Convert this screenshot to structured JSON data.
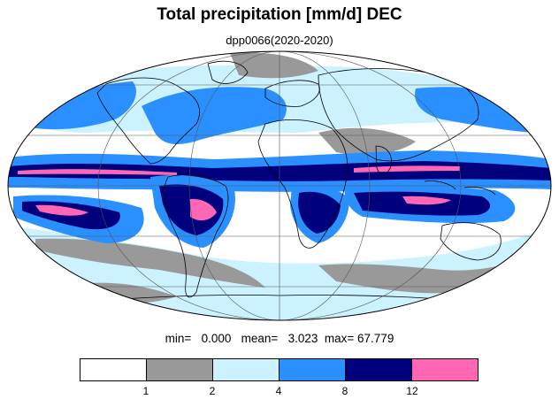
{
  "title": "Total precipitation [mm/d] DEC",
  "subtitle": "dpp0066(2020-2020)",
  "stats": {
    "min_label": "min=",
    "min_value": "0.000",
    "mean_label": "mean=",
    "mean_value": "3.023",
    "max_label": "max=",
    "max_value": "67.779"
  },
  "colorbar": {
    "labels": [
      "1",
      "2",
      "4",
      "8",
      "12"
    ],
    "colors": [
      "#ffffff",
      "#999999",
      "#ccf2ff",
      "#2b90ff",
      "#00007f",
      "#ff66b3"
    ]
  },
  "map": {
    "projection": "mollweide",
    "graticule_lat_step_deg": 30,
    "graticule_lon_step_deg": 60,
    "colors": {
      "background": "#ffffff",
      "outline": "#000000",
      "coast": "#000000",
      "graticule": "#555555"
    }
  }
}
